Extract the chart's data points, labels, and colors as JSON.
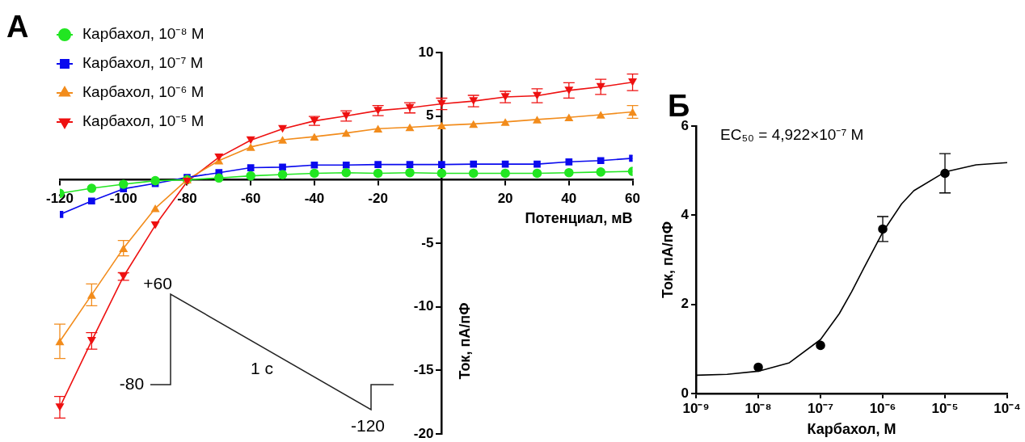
{
  "chart_data": [
    {
      "type": "line",
      "title": "A",
      "xlabel": "Потенциал, мВ",
      "ylabel": "Ток, пА/пФ",
      "x": [
        -120,
        -110,
        -100,
        -90,
        -80,
        -70,
        -60,
        -50,
        -40,
        -30,
        -20,
        -10,
        0,
        10,
        20,
        30,
        40,
        50,
        60
      ],
      "xlim": [
        -120,
        60
      ],
      "ylim": [
        -20,
        10
      ],
      "xticks": [
        -120,
        -100,
        -80,
        -60,
        -40,
        -20,
        {
          "value": 0,
          "label": null
        },
        20,
        40,
        60
      ],
      "yticks": [
        -20,
        -15,
        -10,
        -5,
        {
          "value": 0,
          "label": null
        },
        5,
        10
      ],
      "legend": "top left",
      "grid": false,
      "series": [
        {
          "name": "Карбахол, 10⁻⁸ М",
          "color": "#22e622",
          "marker": "circle",
          "values": [
            -1.08,
            -0.68,
            -0.36,
            -0.08,
            0,
            0.13,
            0.3,
            0.4,
            0.5,
            0.55,
            0.5,
            0.55,
            0.5,
            0.5,
            0.5,
            0.5,
            0.55,
            0.6,
            0.65
          ]
        },
        {
          "name": "Карбахол, 10⁻⁷ М",
          "color": "#0a0aee",
          "marker": "square",
          "values": [
            -2.74,
            -1.68,
            -0.72,
            -0.3,
            0.17,
            0.55,
            0.94,
            0.98,
            1.15,
            1.15,
            1.19,
            1.19,
            1.19,
            1.22,
            1.22,
            1.22,
            1.4,
            1.5,
            1.68
          ]
        },
        {
          "name": "Карбахол, 10⁻⁶ М",
          "color": "#f28c1c",
          "marker": "triangle",
          "values": [
            -12.72,
            -9.06,
            -5.39,
            -2.25,
            0,
            1.5,
            2.57,
            3.14,
            3.38,
            3.67,
            4.01,
            4.12,
            4.27,
            4.38,
            4.54,
            4.73,
            4.9,
            5.11,
            5.33
          ],
          "errors": [
            1.35,
            0.86,
            0.6,
            null,
            null,
            null,
            null,
            null,
            null,
            null,
            null,
            null,
            null,
            null,
            null,
            null,
            null,
            null,
            0.5
          ]
        },
        {
          "name": "Карбахол, 10⁻⁵ М",
          "color": "#ee1111",
          "marker": "triangle-down",
          "values": [
            -17.9,
            -12.68,
            -7.62,
            -3.59,
            -0.15,
            1.76,
            3.1,
            3.99,
            4.62,
            5.01,
            5.43,
            5.65,
            5.96,
            6.18,
            6.5,
            6.6,
            7.02,
            7.3,
            7.66
          ],
          "errors": [
            0.85,
            0.65,
            0.3,
            null,
            null,
            null,
            null,
            null,
            0.35,
            0.4,
            0.4,
            0.4,
            0.45,
            0.45,
            0.45,
            0.55,
            0.6,
            0.6,
            0.65
          ]
        }
      ],
      "annotations": [
        "+60",
        "-80",
        "1 с",
        "-120"
      ]
    },
    {
      "type": "scatter",
      "title": "Б",
      "xlabel": "Карбахол, М",
      "ylabel": "Ток, пА/пФ",
      "log": "x",
      "x": [
        1e-08,
        1e-07,
        1e-06,
        1e-05
      ],
      "xlim": [
        1e-09,
        0.0001
      ],
      "ylim": [
        0,
        6
      ],
      "xticks": [
        {
          "value": 1e-09,
          "label": "10⁻⁹"
        },
        {
          "value": 1e-08,
          "label": "10⁻⁸"
        },
        {
          "value": 1e-07,
          "label": "10⁻⁷"
        },
        {
          "value": 1e-06,
          "label": "10⁻⁶"
        },
        {
          "value": 1e-05,
          "label": "10⁻⁵"
        },
        {
          "value": 0.0001,
          "label": "10⁻⁴"
        }
      ],
      "yticks": [
        0,
        2,
        4,
        6
      ],
      "grid": false,
      "series": [
        {
          "color": "#000000",
          "marker": "circle",
          "values": [
            0.59,
            1.08,
            3.69,
            4.94
          ],
          "errors": [
            null,
            null,
            0.28,
            0.44
          ]
        },
        {
          "type": "line",
          "color": "#000000",
          "marker": "none",
          "x": [
            1e-09,
            3.16e-09,
            1e-08,
            3.16e-08,
            1e-07,
            2e-07,
            3.16e-07,
            5e-07,
            1e-06,
            2e-06,
            3.16e-06,
            1e-05,
            3.16e-05,
            0.0001
          ],
          "values": [
            0.41,
            0.43,
            0.5,
            0.69,
            1.21,
            1.79,
            2.28,
            2.82,
            3.62,
            4.25,
            4.55,
            4.97,
            5.13,
            5.18
          ]
        }
      ],
      "annotations": [
        "EC₅₀ = 4,922×10⁻⁷ М"
      ]
    }
  ]
}
